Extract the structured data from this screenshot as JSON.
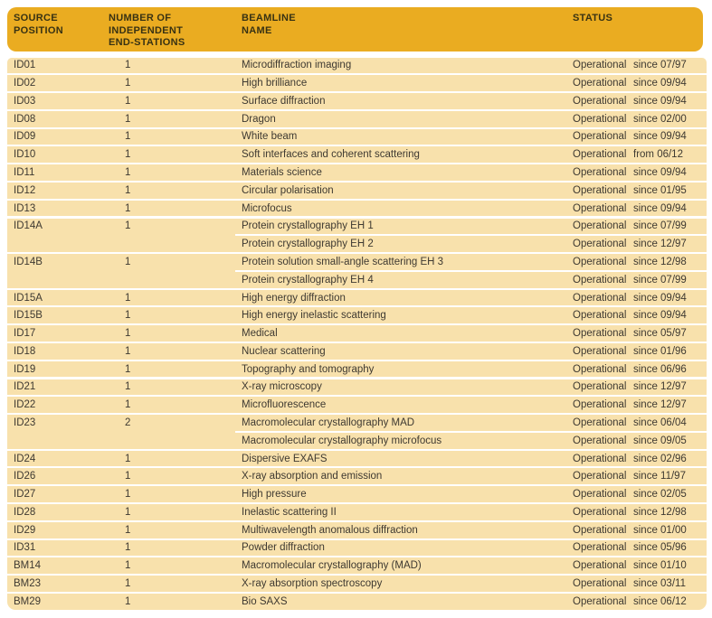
{
  "colors": {
    "header_bg": "#EAAC21",
    "row_bg": "#F8E1AC",
    "header_text": "#383213",
    "row_text": "#3E3931",
    "page_bg": "#FFFFFF"
  },
  "table": {
    "header": {
      "source_position": "SOURCE\nPOSITION",
      "end_stations": "NUMBER OF\nINDEPENDENT\nEND-STATIONS",
      "beamline_name": "BEAMLINE\nNAME",
      "status": "STATUS"
    },
    "rows": [
      {
        "source": "ID01",
        "n": "1",
        "name": "Microdiffraction imaging",
        "status": "Operational",
        "date": "since 07/97",
        "cont": false
      },
      {
        "source": "ID02",
        "n": "1",
        "name": "High brilliance",
        "status": "Operational",
        "date": "since 09/94",
        "cont": false
      },
      {
        "source": "ID03",
        "n": "1",
        "name": "Surface diffraction",
        "status": "Operational",
        "date": "since 09/94",
        "cont": false
      },
      {
        "source": "ID08",
        "n": "1",
        "name": "Dragon",
        "status": "Operational",
        "date": "since 02/00",
        "cont": false
      },
      {
        "source": "ID09",
        "n": "1",
        "name": "White beam",
        "status": "Operational",
        "date": "since 09/94",
        "cont": false
      },
      {
        "source": "ID10",
        "n": "1",
        "name": "Soft interfaces and coherent scattering",
        "status": "Operational",
        "date": "from 06/12",
        "cont": false
      },
      {
        "source": "ID11",
        "n": "1",
        "name": "Materials science",
        "status": "Operational",
        "date": "since 09/94",
        "cont": false
      },
      {
        "source": "ID12",
        "n": "1",
        "name": "Circular polarisation",
        "status": "Operational",
        "date": "since 01/95",
        "cont": false
      },
      {
        "source": "ID13",
        "n": "1",
        "name": "Microfocus",
        "status": "Operational",
        "date": "since 09/94",
        "cont": false
      },
      {
        "source": "ID14A",
        "n": "1",
        "name": "Protein crystallography EH 1",
        "status": "Operational",
        "date": "since 07/99",
        "cont": false
      },
      {
        "source": "",
        "n": "",
        "name": "Protein crystallography EH 2",
        "status": "Operational",
        "date": "since 12/97",
        "cont": true
      },
      {
        "source": "ID14B",
        "n": "1",
        "name": "Protein solution small-angle scattering EH 3",
        "status": "Operational",
        "date": "since 12/98",
        "cont": false
      },
      {
        "source": "",
        "n": "",
        "name": "Protein crystallography EH 4",
        "status": "Operational",
        "date": "since 07/99",
        "cont": true
      },
      {
        "source": "ID15A",
        "n": "1",
        "name": "High energy diffraction",
        "status": "Operational",
        "date": "since 09/94",
        "cont": false
      },
      {
        "source": "ID15B",
        "n": "1",
        "name": "High energy inelastic scattering",
        "status": "Operational",
        "date": "since 09/94",
        "cont": false
      },
      {
        "source": "ID17",
        "n": "1",
        "name": "Medical",
        "status": "Operational",
        "date": "since 05/97",
        "cont": false
      },
      {
        "source": "ID18",
        "n": "1",
        "name": "Nuclear scattering",
        "status": "Operational",
        "date": "since 01/96",
        "cont": false
      },
      {
        "source": "ID19",
        "n": "1",
        "name": "Topography and tomography",
        "status": "Operational",
        "date": "since 06/96",
        "cont": false
      },
      {
        "source": "ID21",
        "n": "1",
        "name": "X-ray microscopy",
        "status": "Operational",
        "date": "since 12/97",
        "cont": false
      },
      {
        "source": "ID22",
        "n": "1",
        "name": "Microfluorescence",
        "status": "Operational",
        "date": "since 12/97",
        "cont": false
      },
      {
        "source": "ID23",
        "n": "2",
        "name": "Macromolecular crystallography MAD",
        "status": "Operational",
        "date": "since 06/04",
        "cont": false
      },
      {
        "source": "",
        "n": "",
        "name": "Macromolecular crystallography microfocus",
        "status": "Operational",
        "date": "since 09/05",
        "cont": true
      },
      {
        "source": "ID24",
        "n": "1",
        "name": "Dispersive EXAFS",
        "status": "Operational",
        "date": "since 02/96",
        "cont": false
      },
      {
        "source": "ID26",
        "n": "1",
        "name": "X-ray absorption and emission",
        "status": "Operational",
        "date": "since 11/97",
        "cont": false
      },
      {
        "source": "ID27",
        "n": "1",
        "name": "High pressure",
        "status": "Operational",
        "date": "since 02/05",
        "cont": false
      },
      {
        "source": "ID28",
        "n": "1",
        "name": "Inelastic scattering II",
        "status": "Operational",
        "date": "since 12/98",
        "cont": false
      },
      {
        "source": "ID29",
        "n": "1",
        "name": "Multiwavelength anomalous diffraction",
        "status": "Operational",
        "date": "since 01/00",
        "cont": false
      },
      {
        "source": "ID31",
        "n": "1",
        "name": "Powder diffraction",
        "status": "Operational",
        "date": "since 05/96",
        "cont": false
      },
      {
        "source": "BM14",
        "n": "1",
        "name": "Macromolecular crystallography (MAD)",
        "status": "Operational",
        "date": "since 01/10",
        "cont": false
      },
      {
        "source": "BM23",
        "n": "1",
        "name": "X-ray absorption spectroscopy",
        "status": "Operational",
        "date": "since 03/11",
        "cont": false
      },
      {
        "source": "BM29",
        "n": "1",
        "name": "Bio SAXS",
        "status": "Operational",
        "date": "since 06/12",
        "cont": false
      }
    ]
  }
}
